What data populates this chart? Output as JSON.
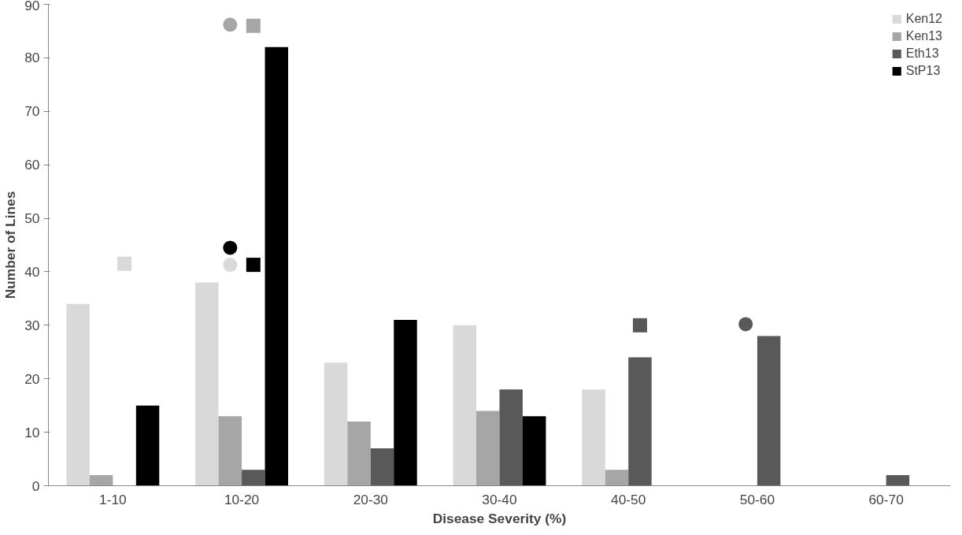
{
  "chart_data": {
    "type": "bar",
    "xlabel": "Disease Severity (%)",
    "ylabel": "Number of Lines",
    "categories": [
      "1-10",
      "10-20",
      "20-30",
      "30-40",
      "40-50",
      "50-60",
      "60-70"
    ],
    "ylim": [
      0,
      90
    ],
    "yticks": [
      0,
      10,
      20,
      30,
      40,
      50,
      60,
      70,
      80,
      90
    ],
    "grid": false,
    "legend": "top right",
    "series": [
      {
        "name": "Ken12",
        "color": "#d9d9d9",
        "values": [
          34,
          38,
          23,
          30,
          18,
          0,
          0
        ]
      },
      {
        "name": "Ken13",
        "color": "#a6a6a6",
        "values": [
          2,
          13,
          12,
          14,
          3,
          0,
          0
        ]
      },
      {
        "name": "Eth13",
        "color": "#595959",
        "values": [
          0,
          3,
          7,
          18,
          24,
          28,
          2
        ]
      },
      {
        "name": "StP13",
        "color": "#000000",
        "values": [
          15,
          82,
          31,
          13,
          0,
          0,
          0
        ]
      },
      {
        "type": "scatter",
        "marker": "square",
        "color": "#d9d9d9",
        "x": [
          "1-10"
        ],
        "values": [
          41.5
        ]
      },
      {
        "type": "scatter",
        "marker": "circle",
        "color": "#d9d9d9",
        "x": [
          "10-20"
        ],
        "values": [
          41.3
        ]
      },
      {
        "type": "scatter",
        "marker": "square",
        "color": "#a6a6a6",
        "x": [
          "10-20"
        ],
        "values": [
          86
        ]
      },
      {
        "type": "scatter",
        "marker": "circle",
        "color": "#a6a6a6",
        "x": [
          "10-20"
        ],
        "values": [
          86.2
        ]
      },
      {
        "type": "scatter",
        "marker": "circle",
        "color": "#000000",
        "x": [
          "10-20"
        ],
        "values": [
          44.5
        ]
      },
      {
        "type": "scatter",
        "marker": "square",
        "color": "#000000",
        "x": [
          "10-20"
        ],
        "values": [
          41.3
        ]
      },
      {
        "type": "scatter",
        "marker": "square",
        "color": "#595959",
        "x": [
          "40-50"
        ],
        "values": [
          30
        ]
      },
      {
        "type": "scatter",
        "marker": "circle",
        "color": "#595959",
        "x": [
          "50-60"
        ],
        "values": [
          30.2
        ]
      }
    ]
  }
}
